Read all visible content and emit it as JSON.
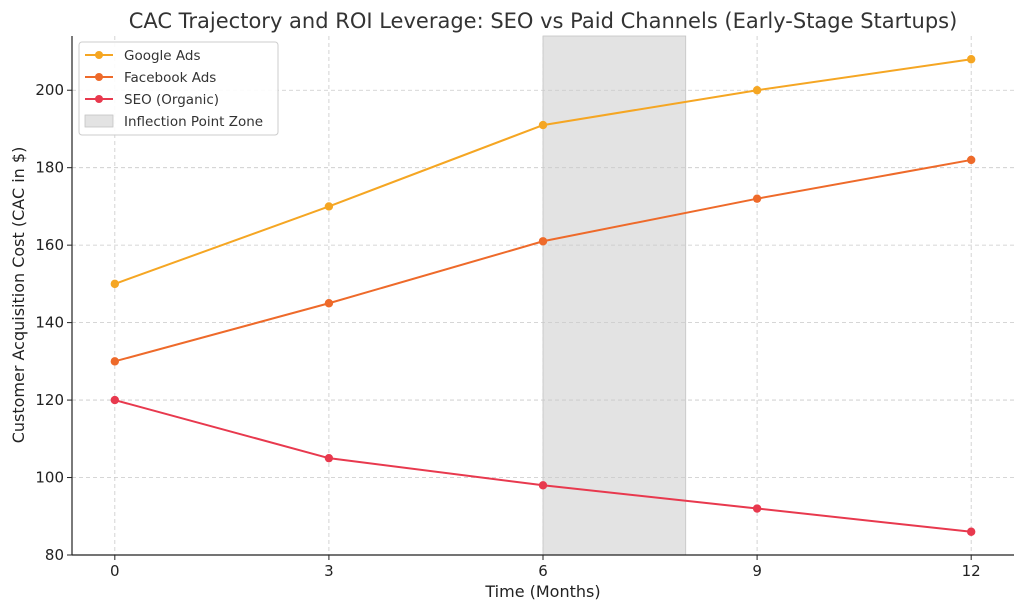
{
  "chart_data": {
    "type": "line",
    "title": "CAC Trajectory and ROI Leverage: SEO vs Paid Channels (Early-Stage Startups)",
    "xlabel": "Time (Months)",
    "ylabel": "Customer Acquisition Cost (CAC in $)",
    "x": [
      0,
      3,
      6,
      9,
      12
    ],
    "xlim": [
      -0.6,
      12.6
    ],
    "ylim": [
      80,
      214
    ],
    "xticks": [
      "0",
      "3",
      "6",
      "9",
      "12"
    ],
    "yticks": [
      "80",
      "100",
      "120",
      "140",
      "160",
      "180",
      "200"
    ],
    "grid": true,
    "legend_position": "top-left",
    "series": [
      {
        "name": "Google Ads",
        "color": "#f5a623",
        "values": [
          150,
          170,
          191,
          200,
          208
        ]
      },
      {
        "name": "Facebook Ads",
        "color": "#ee6a2a",
        "values": [
          130,
          145,
          161,
          172,
          182
        ]
      },
      {
        "name": "SEO (Organic)",
        "color": "#e8394e",
        "values": [
          120,
          105,
          98,
          92,
          86
        ]
      }
    ],
    "shaded_region": {
      "name": "Inflection Point Zone",
      "x_start": 6,
      "x_end": 8,
      "color": "#e3e3e3"
    }
  }
}
